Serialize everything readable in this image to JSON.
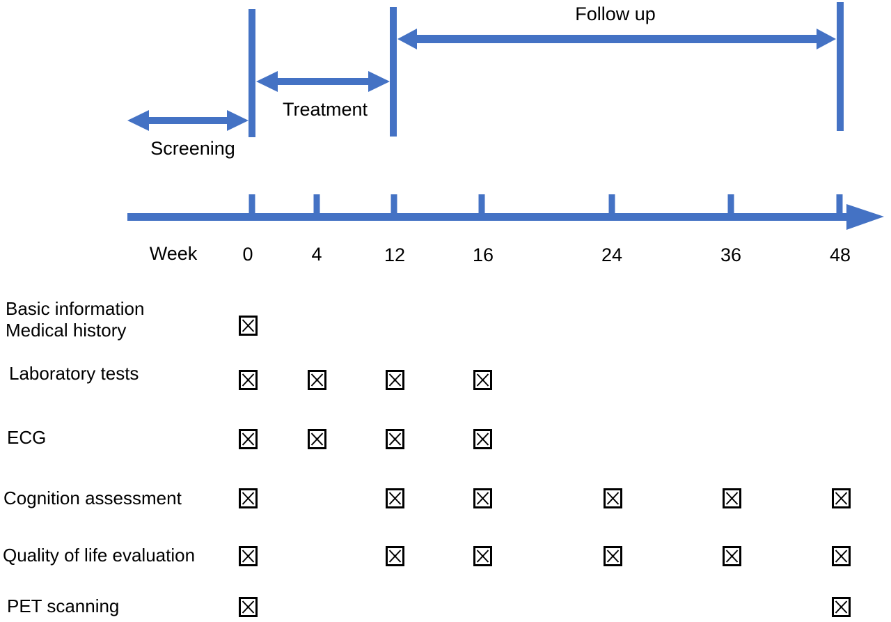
{
  "colors": {
    "accent": "#4472C4",
    "text": "#000000",
    "background": "#ffffff"
  },
  "timeline": {
    "phase_labels": {
      "screening": "Screening",
      "treatment": "Treatment",
      "follow_up": "Follow up"
    },
    "axis_label": "Week",
    "week_ticks": [
      "0",
      "4",
      "12",
      "16",
      "24",
      "36",
      "48"
    ]
  },
  "schedule": {
    "checkbox_glyph": "☒",
    "rows": [
      {
        "label_lines": [
          "Basic information",
          "Medical history"
        ],
        "checked_weeks": [
          "0"
        ]
      },
      {
        "label_lines": [
          "Laboratory tests"
        ],
        "checked_weeks": [
          "0",
          "4",
          "12",
          "16"
        ]
      },
      {
        "label_lines": [
          "ECG"
        ],
        "checked_weeks": [
          "0",
          "4",
          "12",
          "16"
        ]
      },
      {
        "label_lines": [
          "Cognition assessment"
        ],
        "checked_weeks": [
          "0",
          "12",
          "16",
          "24",
          "36",
          "48"
        ]
      },
      {
        "label_lines": [
          "Quality of life evaluation"
        ],
        "checked_weeks": [
          "0",
          "12",
          "16",
          "24",
          "36",
          "48"
        ]
      },
      {
        "label_lines": [
          "PET scanning"
        ],
        "checked_weeks": [
          "0",
          "48"
        ]
      }
    ]
  }
}
